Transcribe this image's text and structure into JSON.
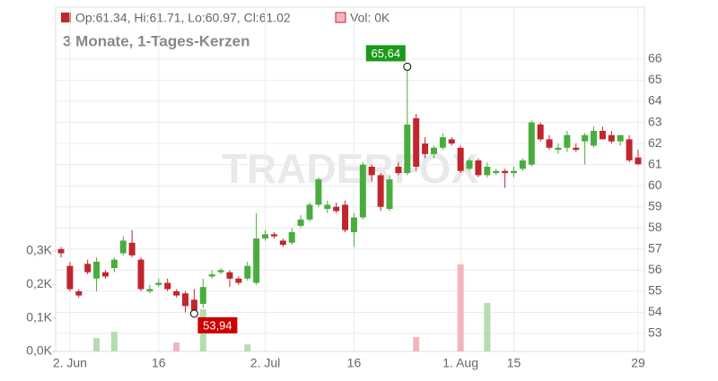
{
  "chart_data": {
    "type": "candlestick",
    "legend_text": "Op:61.34, Hi:61.71, Lo:60.97, Cl:61.02",
    "volume_text": "Vol: 0K",
    "subtitle": "3 Monate, 1-Tages-Kerzen",
    "watermark": "TRADERFOX",
    "categories": [
      null,
      "2. Jun",
      null,
      null,
      null,
      null,
      null,
      null,
      null,
      null,
      null,
      "16",
      null,
      null,
      null,
      null,
      null,
      null,
      null,
      null,
      null,
      null,
      null,
      "2. Jul",
      null,
      null,
      null,
      null,
      null,
      null,
      null,
      null,
      null,
      "16",
      null,
      null,
      null,
      null,
      null,
      null,
      null,
      null,
      null,
      null,
      null,
      "1. Aug",
      null,
      null,
      null,
      null,
      null,
      "15",
      null,
      null,
      null,
      null,
      null,
      null,
      null,
      null,
      null,
      null,
      null,
      null,
      null,
      "29"
    ],
    "open": [
      57.0,
      56.2,
      55.0,
      56.3,
      55.6,
      55.9,
      56.1,
      56.8,
      57.3,
      56.5,
      55.0,
      55.3,
      55.4,
      55.0,
      54.9,
      54.6,
      54.4,
      55.7,
      55.9,
      55.9,
      55.6,
      55.6,
      55.4,
      57.5,
      57.7,
      57.4,
      57.3,
      58.1,
      58.4,
      59.1,
      58.9,
      59.0,
      59.1,
      57.8,
      58.5,
      60.9,
      60.5,
      58.9,
      60.9,
      60.6,
      63.2,
      62.0,
      61.5,
      61.8,
      62.2,
      61.8,
      60.8,
      61.2,
      60.5,
      60.6,
      60.7,
      60.6,
      60.8,
      61.0,
      62.9,
      62.2,
      61.7,
      61.8,
      61.8,
      62.1,
      61.9,
      62.6,
      62.4,
      62.1,
      62.2,
      61.34
    ],
    "high": [
      57.1,
      56.4,
      55.1,
      56.5,
      56.6,
      56.0,
      56.6,
      57.6,
      57.9,
      56.6,
      55.3,
      55.6,
      55.6,
      55.1,
      55.0,
      55.1,
      55.6,
      56.0,
      56.1,
      56.0,
      55.7,
      56.4,
      58.7,
      57.9,
      57.8,
      57.5,
      58.0,
      58.6,
      59.2,
      60.4,
      59.3,
      59.2,
      59.3,
      58.7,
      61.1,
      61.0,
      60.6,
      60.5,
      61.1,
      65.64,
      63.4,
      62.3,
      61.9,
      62.5,
      62.3,
      61.9,
      61.3,
      61.3,
      61.1,
      60.8,
      60.8,
      60.9,
      61.3,
      63.1,
      63.0,
      62.4,
      62.0,
      62.6,
      62.0,
      62.5,
      62.8,
      62.8,
      62.6,
      62.3,
      62.4,
      61.71
    ],
    "low": [
      56.6,
      55.0,
      54.7,
      55.8,
      55.0,
      55.6,
      55.9,
      56.7,
      56.6,
      55.0,
      54.9,
      55.2,
      55.0,
      54.7,
      54.0,
      53.94,
      54.2,
      55.6,
      55.8,
      55.2,
      55.3,
      55.5,
      55.3,
      57.4,
      57.5,
      57.1,
      57.2,
      58.0,
      58.3,
      59.0,
      58.7,
      58.7,
      57.8,
      57.1,
      58.4,
      60.2,
      58.8,
      58.8,
      60.5,
      60.5,
      60.7,
      61.3,
      61.3,
      61.7,
      61.9,
      60.6,
      60.7,
      60.4,
      60.4,
      60.5,
      59.9,
      60.4,
      60.7,
      60.9,
      62.1,
      61.7,
      61.5,
      61.6,
      61.6,
      61.0,
      61.8,
      62.2,
      62.0,
      61.9,
      61.1,
      60.97
    ],
    "close": [
      56.8,
      55.1,
      54.8,
      55.9,
      56.4,
      55.7,
      56.5,
      57.4,
      56.7,
      55.1,
      55.1,
      55.4,
      55.1,
      54.8,
      54.3,
      54.1,
      55.2,
      55.8,
      56.0,
      55.6,
      55.4,
      56.2,
      57.5,
      57.7,
      57.6,
      57.2,
      57.8,
      58.4,
      59.1,
      60.3,
      59.1,
      58.8,
      57.9,
      58.5,
      61.0,
      60.5,
      59.0,
      60.3,
      60.6,
      62.9,
      60.9,
      61.5,
      61.8,
      62.3,
      62.0,
      60.7,
      61.2,
      60.5,
      60.9,
      60.7,
      60.6,
      60.7,
      61.2,
      63.0,
      62.2,
      61.8,
      61.8,
      62.4,
      61.7,
      62.4,
      62.6,
      62.2,
      62.1,
      62.4,
      61.2,
      61.02
    ],
    "volume": [
      null,
      null,
      null,
      null,
      40,
      null,
      59,
      null,
      null,
      null,
      null,
      null,
      null,
      27,
      null,
      null,
      126,
      null,
      null,
      null,
      null,
      21,
      null,
      null,
      null,
      null,
      null,
      null,
      null,
      null,
      null,
      null,
      null,
      null,
      null,
      null,
      null,
      null,
      null,
      null,
      43,
      null,
      null,
      null,
      null,
      260,
      null,
      null,
      145,
      null,
      null,
      null,
      null,
      null,
      null,
      null,
      null,
      null,
      null,
      null,
      null,
      null,
      null,
      null,
      null,
      null
    ],
    "up_color": "#49ad3e",
    "down_color": "#c0262e",
    "volume_up_color": "#b3ddb0",
    "volume_down_color": "#f2b5bd",
    "ylim": [
      52.15,
      68.46
    ],
    "yticks": [
      53,
      54,
      55,
      56,
      57,
      58,
      59,
      60,
      61,
      62,
      63,
      64,
      65,
      66
    ],
    "y2lim": [
      0,
      1029
    ],
    "y2ticks": [
      {
        "value": 0,
        "label": "0,0K"
      },
      {
        "value": 100,
        "label": "0,1K"
      },
      {
        "value": 200,
        "label": "0,2K"
      },
      {
        "value": 300,
        "label": "0,3K"
      }
    ],
    "annotations": [
      {
        "value": 65.64,
        "label": "65,64",
        "color": "#1a9a1a"
      },
      {
        "value": 53.94,
        "label": "53,94",
        "color": "#cc0000"
      }
    ],
    "grid": true
  }
}
